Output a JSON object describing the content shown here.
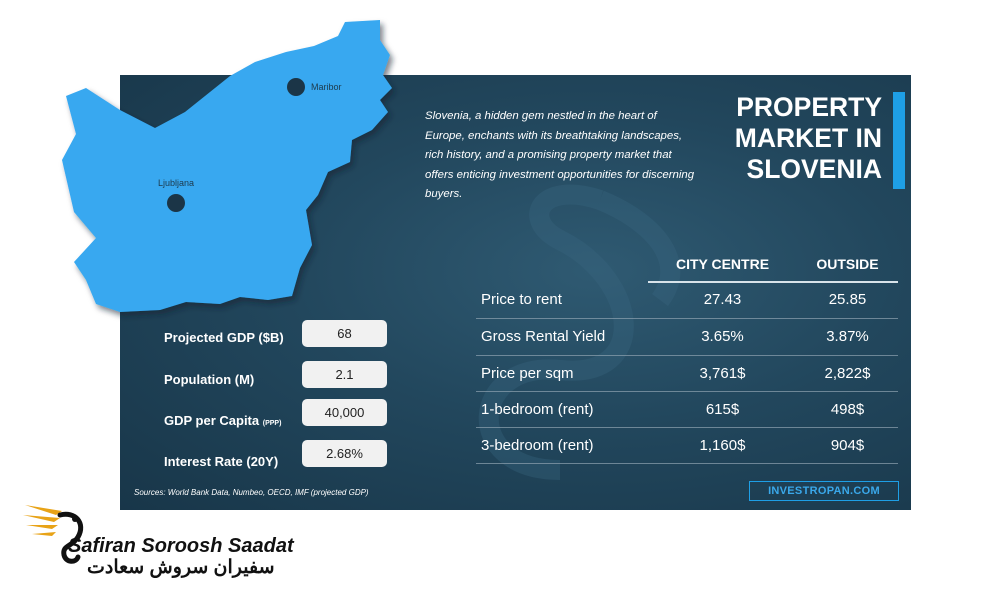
{
  "intro_text": "Slovenia, a hidden gem nestled in the heart of Europe, enchants with its breathtaking landscapes, rich history, and a promising property market that offers enticing investment opportunities for discerning buyers.",
  "title_lines": [
    "PROPERTY",
    "MARKET IN",
    "SLOVENIA"
  ],
  "map": {
    "cities": [
      "Maribor",
      "Ljubljana"
    ],
    "color": "#37a8f0"
  },
  "table": {
    "columns": [
      "CITY CENTRE",
      "OUTSIDE"
    ],
    "rows": [
      {
        "label": "Price to rent",
        "city": "27.43",
        "outside": "25.85"
      },
      {
        "label": "Gross Rental Yield",
        "city": "3.65%",
        "outside": "3.87%"
      },
      {
        "label": "Price per sqm",
        "city": "3,761$",
        "outside": "2,822$"
      },
      {
        "label": "1-bedroom (rent)",
        "city": "615$",
        "outside": "498$"
      },
      {
        "label": "3-bedroom (rent)",
        "city": "1,160$",
        "outside": "904$"
      }
    ]
  },
  "stats": [
    {
      "label": "Projected GDP ($B)",
      "suffix": "",
      "value": "68"
    },
    {
      "label": "Population (M)",
      "suffix": "",
      "value": "2.1"
    },
    {
      "label": "GDP per Capita",
      "suffix": "(PPP)",
      "value": "40,000"
    },
    {
      "label": "Interest Rate (20Y)",
      "suffix": "",
      "value": "2.68%"
    }
  ],
  "sources": "Sources:  World Bank Data, Numbeo, OECD, IMF (projected GDP)",
  "website": "INVESTROPAN.COM",
  "logo": {
    "name_en": "Safiran Soroosh Saadat",
    "name_fa": "سفیران سروش سعادت"
  },
  "colors": {
    "panel": "#22475d",
    "accent": "#1e9fe6",
    "map": "#37a8f0"
  }
}
